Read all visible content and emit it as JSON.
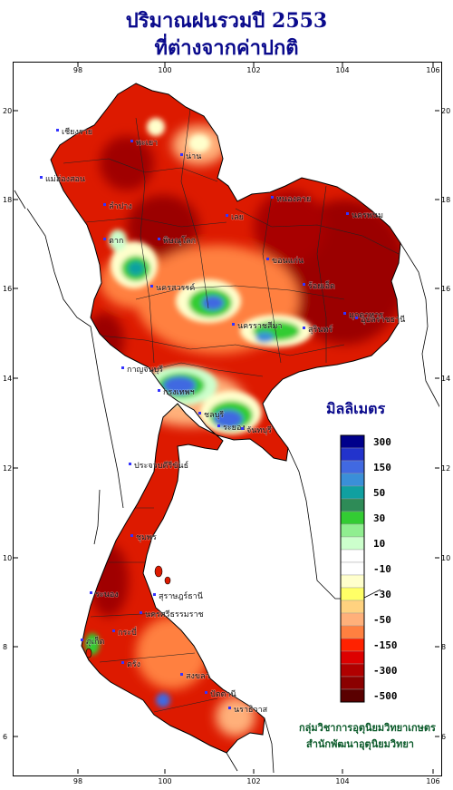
{
  "title": {
    "line1": "ปริมาณฝนรวมปี 2553",
    "line2": "ที่ต่างจากค่าปกติ"
  },
  "axes": {
    "longitude_ticks": [
      "98",
      "100",
      "102",
      "104",
      "106"
    ],
    "latitude_ticks": [
      "20",
      "18",
      "16",
      "14",
      "12",
      "10",
      "8",
      "6"
    ]
  },
  "legend": {
    "title": "มิลลิเมตร",
    "items": [
      {
        "label": "300",
        "color": "#00008b"
      },
      {
        "label": "",
        "color": "#2233cc"
      },
      {
        "label": "150",
        "color": "#4169e1"
      },
      {
        "label": "",
        "color": "#3a8fd8"
      },
      {
        "label": "50",
        "color": "#10a0a0"
      },
      {
        "label": "",
        "color": "#2e8b57"
      },
      {
        "label": "30",
        "color": "#33cc33"
      },
      {
        "label": "",
        "color": "#90ee90"
      },
      {
        "label": "10",
        "color": "#ccffcc"
      },
      {
        "label": "",
        "color": "#ffffff"
      },
      {
        "label": "-10",
        "color": "#ffffff"
      },
      {
        "label": "",
        "color": "#ffffcc"
      },
      {
        "label": "-30",
        "color": "#ffff66"
      },
      {
        "label": "",
        "color": "#ffd27f"
      },
      {
        "label": "-50",
        "color": "#ffb07a"
      },
      {
        "label": "",
        "color": "#ff8040"
      },
      {
        "label": "-150",
        "color": "#ff2200"
      },
      {
        "label": "",
        "color": "#dd0000"
      },
      {
        "label": "-300",
        "color": "#b00000"
      },
      {
        "label": "",
        "color": "#8b0000"
      },
      {
        "label": "-500",
        "color": "#5a0000"
      }
    ]
  },
  "places": [
    "เชียงราย",
    "พะเยา",
    "น่าน",
    "แม่ฮ่องสอน",
    "ลำปาง",
    "หนองคาย",
    "นครพนม",
    "เลย",
    "ตาก",
    "พิษณุโลก",
    "ขอนแก่น",
    "มุกดาหาร",
    "นครสวรรค์",
    "ร้อยเอ็ด",
    "นครราชสีมา",
    "สุรินทร์",
    "อุบลราชธานี",
    "กาญจนบุรี",
    "กรุงเทพฯ",
    "ชลบุรี",
    "ระยอง",
    "จันทบุรี",
    "ประจวบคีรีขันธ์",
    "ชุมพร",
    "ระนอง",
    "สุราษฎร์ธานี",
    "นครศรีธรรมราช",
    "ภูเก็ต",
    "กระบี่",
    "ตรัง",
    "สงขลา",
    "ปัตตานี",
    "นราธิวาส"
  ],
  "credit": {
    "line1": "กลุ่มวิชาการอุตุนิยมวิทยาเกษตร",
    "line2": "สำนักพัฒนาอุตุนิยมวิทยา"
  },
  "colors": {
    "title": "#0a0a8c",
    "deficit_severe": "#8b0000",
    "deficit": "#dd0000",
    "surplus": "#4169e1",
    "credit": "#0b5a2a"
  }
}
